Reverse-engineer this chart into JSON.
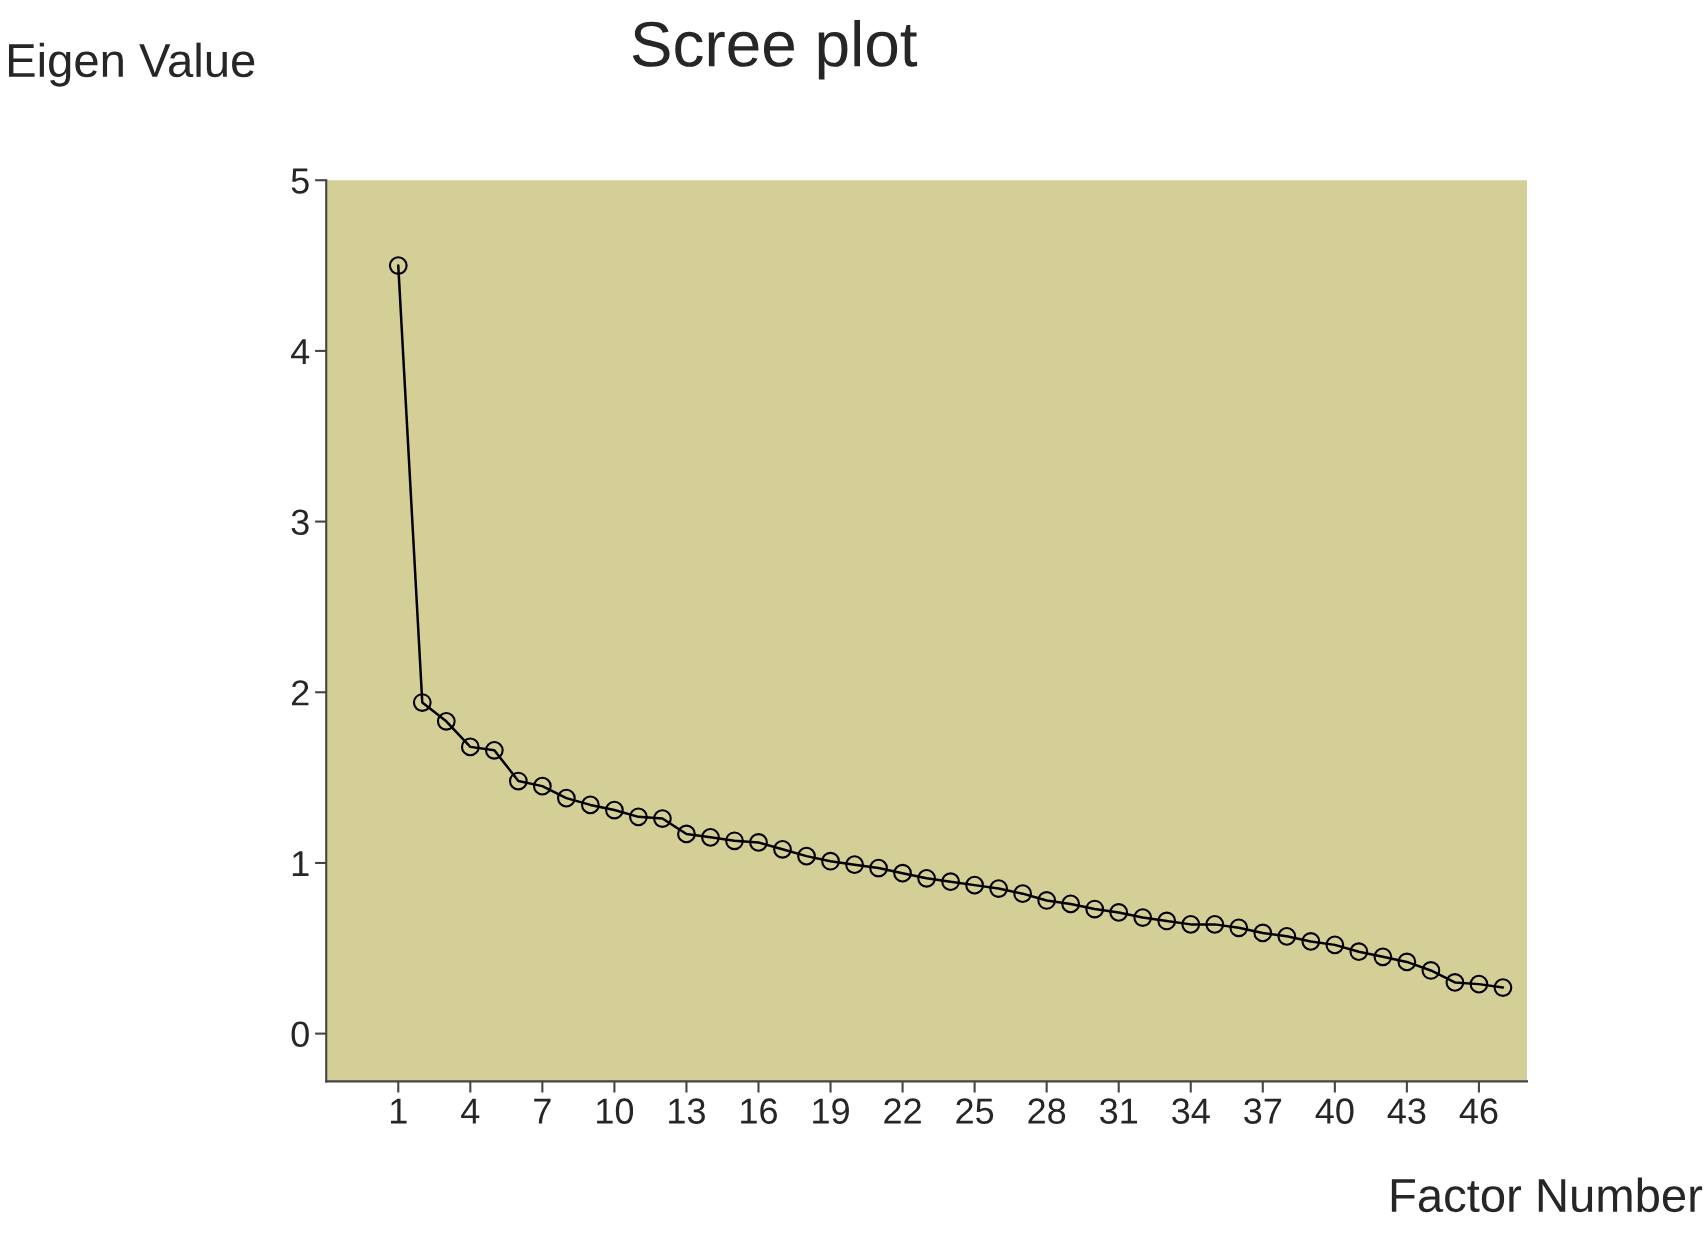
{
  "chart_data": {
    "type": "line",
    "title": "Scree plot",
    "xlabel": "Factor Number",
    "ylabel": "Eigen Value",
    "x": [
      1,
      2,
      3,
      4,
      5,
      6,
      7,
      8,
      9,
      10,
      11,
      12,
      13,
      14,
      15,
      16,
      17,
      18,
      19,
      20,
      21,
      22,
      23,
      24,
      25,
      26,
      27,
      28,
      29,
      30,
      31,
      32,
      33,
      34,
      35,
      36,
      37,
      38,
      39,
      40,
      41,
      42,
      43,
      44,
      45,
      46,
      47
    ],
    "series": [
      {
        "color": "#000000",
        "values": [
          4.5,
          1.94,
          1.83,
          1.68,
          1.66,
          1.48,
          1.45,
          1.38,
          1.34,
          1.31,
          1.27,
          1.26,
          1.17,
          1.15,
          1.13,
          1.12,
          1.08,
          1.04,
          1.01,
          0.99,
          0.97,
          0.94,
          0.91,
          0.89,
          0.87,
          0.85,
          0.82,
          0.78,
          0.76,
          0.73,
          0.71,
          0.68,
          0.66,
          0.64,
          0.64,
          0.62,
          0.59,
          0.57,
          0.54,
          0.52,
          0.48,
          0.45,
          0.42,
          0.37,
          0.3,
          0.29,
          0.27
        ]
      }
    ],
    "xlim": [
      -2,
      48
    ],
    "ylim": [
      -0.28,
      5.0
    ],
    "xticks": [
      1,
      4,
      7,
      10,
      13,
      16,
      19,
      22,
      25,
      28,
      31,
      34,
      37,
      40,
      43,
      46
    ],
    "yticks": [
      0,
      1,
      2,
      3,
      4,
      5
    ],
    "marker": "circle",
    "line_style": "solid",
    "grid": false,
    "legend": false
  }
}
